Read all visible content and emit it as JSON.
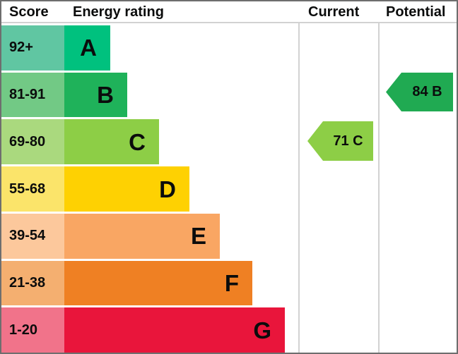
{
  "chart_data": {
    "type": "bar",
    "title": "Energy rating",
    "columns": [
      "Score",
      "Energy rating",
      "Current",
      "Potential"
    ],
    "bands": [
      {
        "letter": "A",
        "score_range": "92+",
        "bar_color": "#00c17e",
        "score_color": "#60c6a2"
      },
      {
        "letter": "B",
        "score_range": "81-91",
        "bar_color": "#1fb25a",
        "score_color": "#72c985"
      },
      {
        "letter": "C",
        "score_range": "69-80",
        "bar_color": "#8dce46",
        "score_color": "#aad97e"
      },
      {
        "letter": "D",
        "score_range": "55-68",
        "bar_color": "#fed102",
        "score_color": "#fbe46a"
      },
      {
        "letter": "E",
        "score_range": "39-54",
        "bar_color": "#f9a663",
        "score_color": "#fcc89c"
      },
      {
        "letter": "F",
        "score_range": "21-38",
        "bar_color": "#ef8023",
        "score_color": "#f4af70"
      },
      {
        "letter": "G",
        "score_range": "1-20",
        "bar_color": "#e9153b",
        "score_color": "#f1738a"
      }
    ],
    "current": {
      "value": 71,
      "band": "C",
      "label": "71 C",
      "color": "#8dce46"
    },
    "potential": {
      "value": 84,
      "band": "B",
      "label": "84 B",
      "color": "#20aa52"
    },
    "layout": {
      "legend": "none",
      "grid": "off",
      "divider_color": "#d2d2d2",
      "border_color": "#6e6e6e"
    }
  }
}
